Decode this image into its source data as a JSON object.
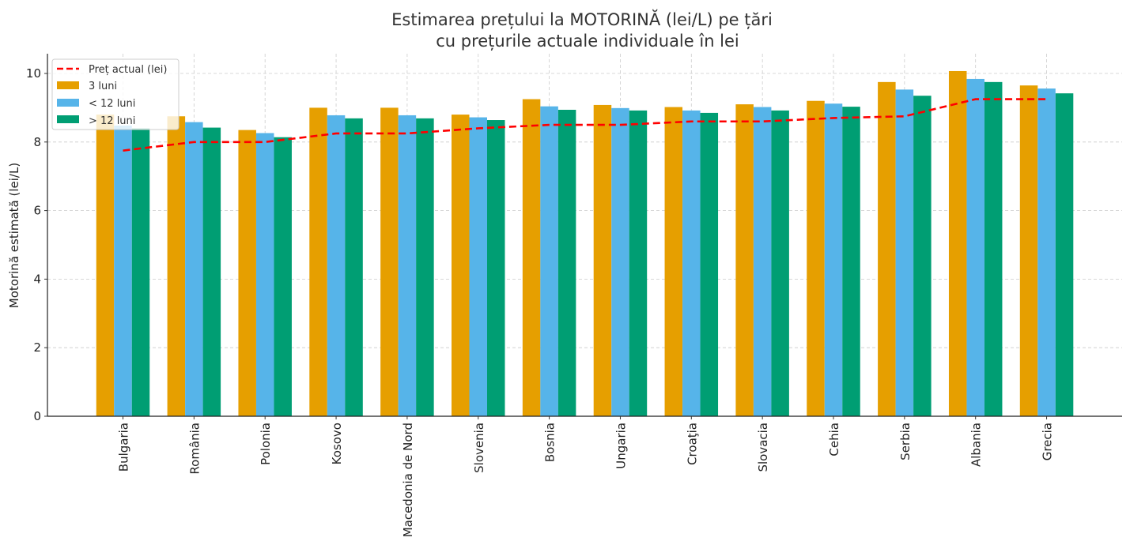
{
  "chart_data": {
    "type": "bar",
    "title_lines": [
      "Estimarea prețului la MOTORINĂ (lei/L) pe țări",
      "cu prețurile actuale individuale în lei"
    ],
    "xlabel": "",
    "ylabel": "Motorină estimată (lei/L)",
    "ylim": [
      0,
      10.6
    ],
    "yticks": [
      0,
      2,
      4,
      6,
      8,
      10
    ],
    "grid": true,
    "legend_position": "top-left",
    "categories": [
      "Bulgaria",
      "România",
      "Polonia",
      "Kosovo",
      "Macedonia de Nord",
      "Slovenia",
      "Bosnia",
      "Ungaria",
      "Croaţia",
      "Slovacia",
      "Cehia",
      "Serbia",
      "Albania",
      "Grecia"
    ],
    "series": [
      {
        "name": "3 luni",
        "color": "#E69F00",
        "values": [
          8.8,
          8.75,
          8.35,
          9.0,
          9.0,
          8.8,
          9.25,
          9.08,
          9.02,
          9.1,
          9.2,
          9.75,
          10.07,
          9.65
        ]
      },
      {
        "name": "< 12 luni",
        "color": "#56B4E9",
        "values": [
          8.48,
          8.58,
          8.26,
          8.78,
          8.78,
          8.72,
          9.04,
          8.99,
          8.92,
          9.02,
          9.12,
          9.53,
          9.84,
          9.56
        ]
      },
      {
        "name": "> 12 luni",
        "color": "#009E73",
        "values": [
          8.4,
          8.42,
          8.14,
          8.69,
          8.69,
          8.64,
          8.94,
          8.92,
          8.85,
          8.92,
          9.03,
          9.35,
          9.75,
          9.42
        ]
      }
    ],
    "line_series": {
      "name": "Preț actual (lei)",
      "color": "#FF0000",
      "style": "dashed",
      "values": [
        7.75,
        8.0,
        8.0,
        8.25,
        8.25,
        8.4,
        8.5,
        8.5,
        8.6,
        8.6,
        8.7,
        8.75,
        9.25,
        9.25
      ]
    }
  }
}
